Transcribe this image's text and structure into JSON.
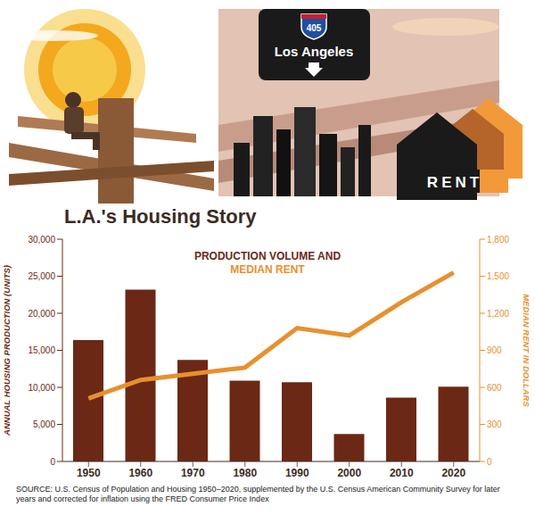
{
  "header": {
    "sign_number": "405",
    "sign_text": "Los Angeles",
    "house_text": "RENT"
  },
  "chart_data": {
    "type": "bar",
    "title": "L.A.'s Housing Story",
    "categories": [
      "1950",
      "1960",
      "1970",
      "1980",
      "1990",
      "2000",
      "2010",
      "2020"
    ],
    "series": [
      {
        "name": "PRODUCTION VOLUME AND",
        "type": "bar",
        "color": "#6b2815",
        "values": [
          16400,
          23200,
          13700,
          10900,
          10700,
          3700,
          8600,
          10100
        ]
      },
      {
        "name": "MEDIAN RENT",
        "type": "line",
        "axis": "y2",
        "color": "#e8902e",
        "values": [
          510,
          660,
          710,
          760,
          1080,
          1020,
          1290,
          1530
        ]
      }
    ],
    "y_label": "ANNUAL HOUSING PRODUCTION (UNITS)",
    "y2_label": "MEDIAN RENT IN DOLLARS",
    "ylim": [
      0,
      30000
    ],
    "yticks": [
      0,
      {
        "value": 5000,
        "label": "5,000"
      },
      {
        "value": 10000,
        "label": "10,000"
      },
      {
        "value": 15000,
        "label": "15,000"
      },
      {
        "value": 20000,
        "label": "20,000"
      },
      {
        "value": 25000,
        "label": "25,000"
      },
      {
        "value": 30000,
        "label": "30,000"
      }
    ],
    "y2lim": [
      0,
      1800
    ],
    "y2ticks": [
      0,
      300,
      600,
      900,
      {
        "value": 1200,
        "label": "1,200"
      },
      {
        "value": 1500,
        "label": "1,500"
      },
      {
        "value": 1800,
        "label": "1,800"
      }
    ],
    "grid": false,
    "legend": "top",
    "source": "SOURCE: U.S. Census of Population and Housing 1950–2020, supplemented by the U.S. Census American Community Survey for later years and corrected for inflation using the FRED Consumer Price Index"
  }
}
